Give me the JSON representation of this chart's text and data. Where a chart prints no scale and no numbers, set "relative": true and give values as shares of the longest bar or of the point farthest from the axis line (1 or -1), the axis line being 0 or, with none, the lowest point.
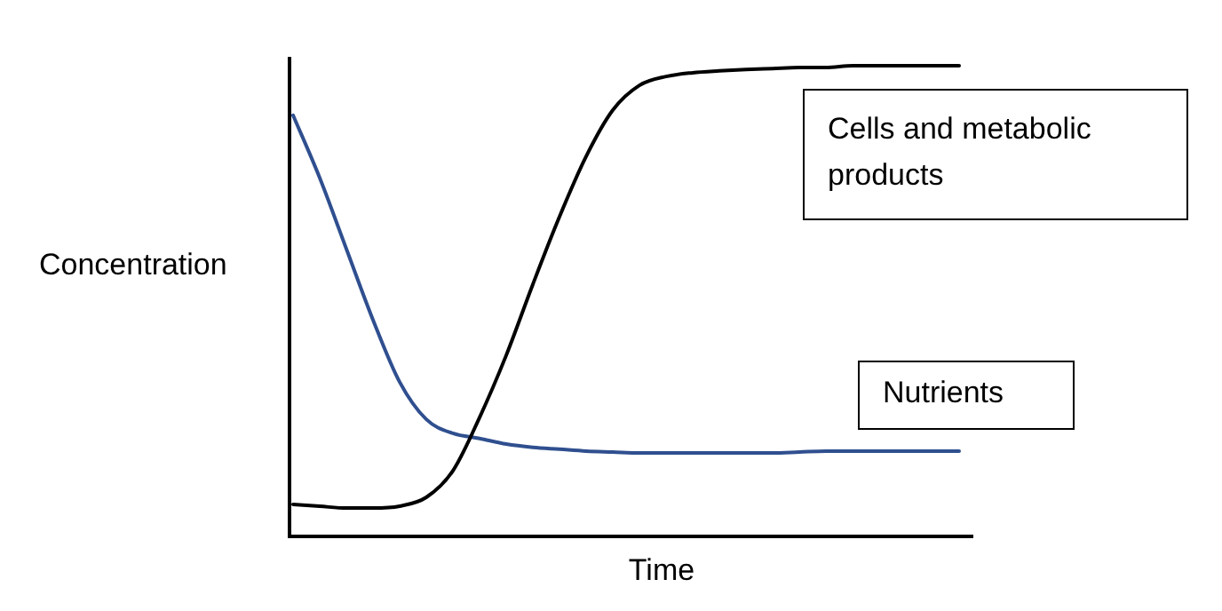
{
  "chart_data": {
    "type": "line",
    "relative": true,
    "xlabel": "Time",
    "ylabel": "Concentration",
    "legend": false,
    "marker": "none",
    "line_style": "solid",
    "categories": [
      null,
      null,
      null,
      null,
      null,
      null,
      null,
      null,
      null,
      null,
      null,
      null,
      null,
      null,
      null,
      null,
      null,
      null,
      null,
      null,
      null,
      null,
      null,
      null,
      null,
      null
    ],
    "series": [
      {
        "name": "Cells and metabolic products",
        "color": "#000000",
        "values": [
          0.061,
          0.057,
          0.053,
          0.053,
          0.057,
          0.076,
          0.133,
          0.247,
          0.38,
          0.532,
          0.677,
          0.806,
          0.905,
          0.958,
          0.977,
          0.985,
          0.989,
          0.992,
          0.994,
          0.996,
          0.996,
          1,
          1,
          1,
          1,
          1
        ]
      },
      {
        "name": "Nutrients",
        "color": "#2f4f8f",
        "values": [
          0.894,
          0.76,
          0.608,
          0.456,
          0.323,
          0.243,
          0.213,
          0.202,
          0.19,
          0.183,
          0.179,
          0.175,
          0.173,
          0.171,
          0.171,
          0.171,
          0.171,
          0.171,
          0.171,
          0.173,
          0.175,
          0.175,
          0.175,
          0.175,
          0.175,
          0.175
        ]
      }
    ]
  }
}
